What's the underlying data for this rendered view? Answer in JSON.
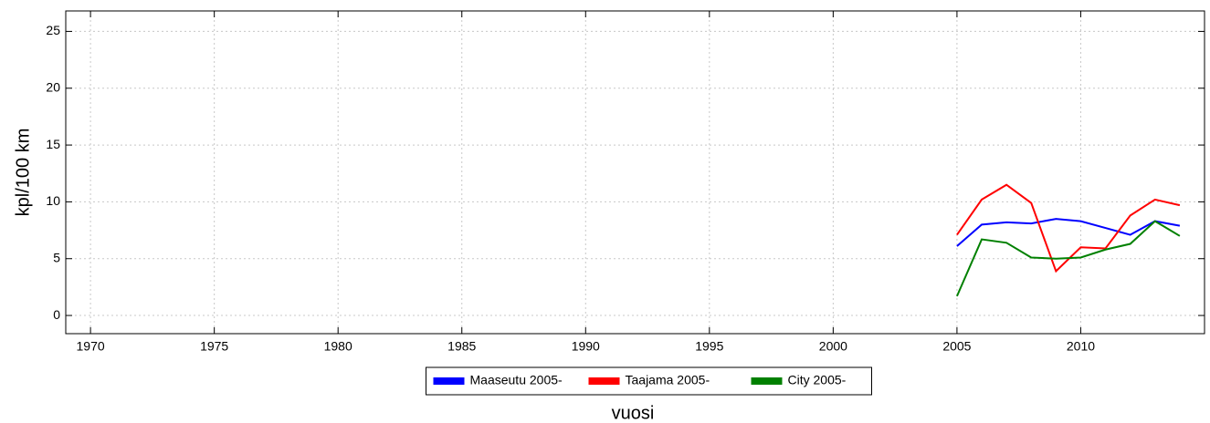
{
  "chart_data": {
    "type": "line",
    "x": [
      2005,
      2006,
      2007,
      2008,
      2009,
      2010,
      2011,
      2012,
      2013,
      2014
    ],
    "series": [
      {
        "name": "Maaseutu 2005-",
        "color": "#0000ff",
        "values": [
          6.1,
          8.0,
          8.2,
          8.1,
          8.5,
          8.3,
          7.7,
          7.1,
          8.3,
          7.9
        ]
      },
      {
        "name": "Taajama 2005-",
        "color": "#ff0000",
        "values": [
          7.1,
          10.2,
          11.5,
          9.9,
          3.9,
          6.0,
          5.9,
          8.8,
          10.2,
          9.7
        ]
      },
      {
        "name": "City 2005-",
        "color": "#008000",
        "values": [
          1.7,
          6.7,
          6.4,
          5.1,
          5.0,
          5.1,
          5.8,
          6.3,
          8.3,
          7.0
        ]
      }
    ],
    "xlabel": "vuosi",
    "ylabel": "kpl/100 km",
    "xlim": [
      1969,
      2015
    ],
    "xticks": [
      1970,
      1975,
      1980,
      1985,
      1990,
      1995,
      2000,
      2005,
      2010
    ],
    "ylim": [
      -1.6,
      26.8
    ],
    "yticks": [
      0,
      5,
      10,
      15,
      20,
      25
    ],
    "grid": true,
    "legend": "bottom"
  }
}
